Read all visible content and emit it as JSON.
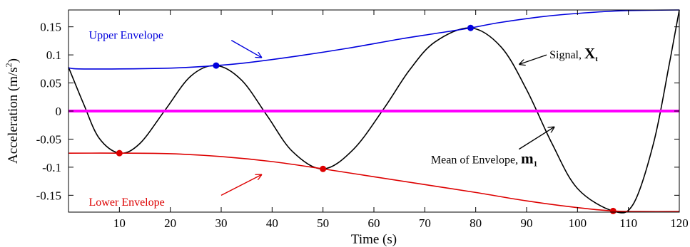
{
  "chart_data": {
    "type": "line",
    "xlabel": "Time (s)",
    "ylabel": "Acceleration (m/s",
    "ylabel_sup": "2",
    "ylabel_close": ")",
    "xlim": [
      0,
      120
    ],
    "ylim": [
      -0.18,
      0.18
    ],
    "x_ticks": [
      10,
      20,
      30,
      40,
      50,
      60,
      70,
      80,
      90,
      100,
      110,
      120
    ],
    "y_ticks": [
      -0.15,
      -0.1,
      -0.05,
      0,
      0.05,
      0.1,
      0.15
    ],
    "y_tick_labels": [
      "-0.15",
      "-0.1",
      "-0.05",
      "0",
      "0.05",
      "0.1",
      "0.15"
    ],
    "grid": false,
    "series": [
      {
        "name": "Signal",
        "color": "#000000",
        "x": [
          0,
          3,
          6,
          10,
          14,
          19,
          24,
          29,
          34,
          39,
          44,
          50,
          56,
          62,
          67,
          72,
          79,
          85,
          90,
          95,
          100,
          107,
          111,
          115,
          118,
          120
        ],
        "y": [
          0.078,
          0.012,
          -0.048,
          -0.075,
          -0.058,
          0.002,
          0.062,
          0.081,
          0.055,
          -0.008,
          -0.072,
          -0.103,
          -0.068,
          0.005,
          0.073,
          0.123,
          0.148,
          0.114,
          0.038,
          -0.058,
          -0.138,
          -0.178,
          -0.165,
          -0.055,
          0.082,
          0.18
        ]
      },
      {
        "name": "Upper Envelope",
        "color": "#0000dd",
        "x": [
          0,
          2,
          10,
          18,
          24,
          29,
          35,
          45,
          55,
          65,
          72,
          79,
          85,
          95,
          105,
          110,
          120
        ],
        "y": [
          0.077,
          0.075,
          0.075,
          0.076,
          0.078,
          0.081,
          0.086,
          0.098,
          0.112,
          0.128,
          0.138,
          0.148,
          0.158,
          0.17,
          0.177,
          0.179,
          0.18
        ]
      },
      {
        "name": "Lower Envelope",
        "color": "#dd0000",
        "x": [
          0,
          10,
          20,
          30,
          40,
          50,
          60,
          70,
          80,
          90,
          100,
          107,
          112,
          120
        ],
        "y": [
          -0.075,
          -0.075,
          -0.076,
          -0.081,
          -0.09,
          -0.103,
          -0.117,
          -0.131,
          -0.145,
          -0.16,
          -0.172,
          -0.178,
          -0.179,
          -0.179
        ]
      },
      {
        "name": "Mean of Envelope",
        "color": "#ff00ff",
        "x": [
          0,
          120
        ],
        "y": [
          0,
          0
        ]
      }
    ],
    "extrema_markers": [
      {
        "x": 29,
        "y": 0.081,
        "color": "#0000dd"
      },
      {
        "x": 79,
        "y": 0.148,
        "color": "#0000dd"
      },
      {
        "x": 10,
        "y": -0.075,
        "color": "#dd0000"
      },
      {
        "x": 50,
        "y": -0.103,
        "color": "#dd0000"
      },
      {
        "x": 107,
        "y": -0.178,
        "color": "#dd0000"
      }
    ],
    "annotations": [
      {
        "id": "upper",
        "text": "Upper Envelope",
        "bold": "",
        "sub": "",
        "color": "#0000dd",
        "tx": 4,
        "ty": 0.135,
        "arrow": [
          [
            32,
            0.126
          ],
          [
            38,
            0.095
          ]
        ]
      },
      {
        "id": "lower",
        "text": "Lower Envelope",
        "bold": "",
        "sub": "",
        "color": "#dd0000",
        "tx": 4,
        "ty": -0.162,
        "arrow": [
          [
            30,
            -0.15
          ],
          [
            38,
            -0.113
          ]
        ]
      },
      {
        "id": "signal",
        "text": "Signal,",
        "bold": "X",
        "sub": "t",
        "color": "#000000",
        "tx": 94.5,
        "ty": 0.1,
        "arrow": [
          [
            94,
            0.1
          ],
          [
            88.5,
            0.083
          ]
        ]
      },
      {
        "id": "mean",
        "text": "Mean of Envelope,",
        "bold": "m",
        "sub": "1",
        "color": "#000000",
        "tx": 71.2,
        "ty": -0.087,
        "arrow": [
          [
            88.5,
            -0.068
          ],
          [
            95.5,
            -0.028
          ]
        ]
      }
    ]
  }
}
